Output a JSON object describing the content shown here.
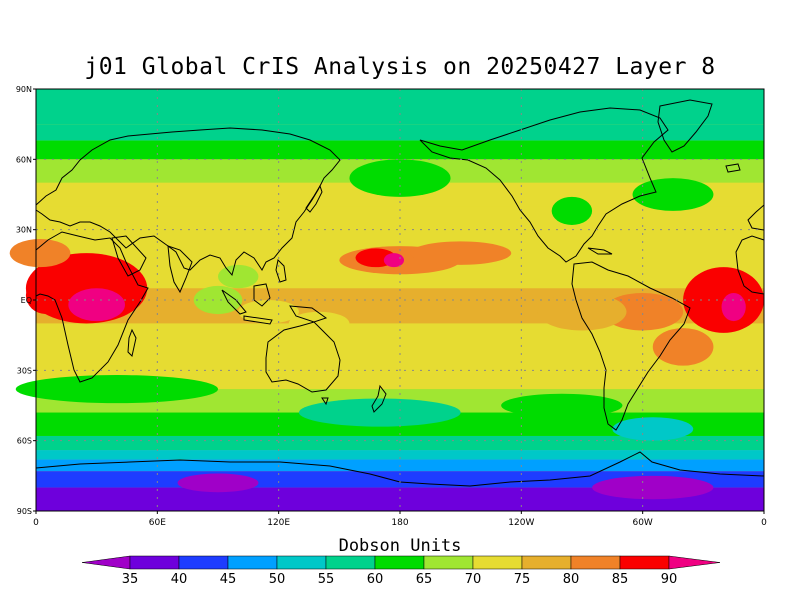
{
  "title": "j01 Global CrIS Analysis on 20250427 Layer 8",
  "colorbar": {
    "label": "Dobson Units",
    "tick_labels": [
      "35",
      "40",
      "45",
      "50",
      "55",
      "60",
      "65",
      "70",
      "75",
      "80",
      "85",
      "90"
    ],
    "bins": [
      {
        "upper": 35,
        "color": "#a000c8"
      },
      {
        "upper": 40,
        "color": "#6e00dc"
      },
      {
        "upper": 45,
        "color": "#1e3cff"
      },
      {
        "upper": 50,
        "color": "#00a0ff"
      },
      {
        "upper": 55,
        "color": "#00c8c8"
      },
      {
        "upper": 60,
        "color": "#00d28c"
      },
      {
        "upper": 65,
        "color": "#00dc00"
      },
      {
        "upper": 70,
        "color": "#a0e632"
      },
      {
        "upper": 75,
        "color": "#e6dc32"
      },
      {
        "upper": 80,
        "color": "#e6af2d"
      },
      {
        "upper": 85,
        "color": "#f08228"
      },
      {
        "upper": 90,
        "color": "#fa0000"
      },
      {
        "upper": 95,
        "color": "#f00082"
      }
    ]
  },
  "map": {
    "lon_labels": [
      "0",
      "60E",
      "120E",
      "180",
      "120W",
      "60W",
      "0"
    ],
    "lat_labels": [
      "90N",
      "60N",
      "30N",
      "EQ",
      "30S",
      "60S",
      "90S"
    ],
    "grid": true,
    "bands": [
      {
        "lat": 90,
        "du": 57
      },
      {
        "lat": 75,
        "du": 56
      },
      {
        "lat": 68,
        "du": 61
      },
      {
        "lat": 60,
        "du": 66
      },
      {
        "lat": 50,
        "du": 68
      },
      {
        "lat": 40,
        "du": 72
      },
      {
        "lat": 30,
        "du": 73
      },
      {
        "lat": 20,
        "du": 74
      },
      {
        "lat": 5,
        "du": 75
      },
      {
        "lat": -10,
        "du": 75
      },
      {
        "lat": -25,
        "du": 72
      },
      {
        "lat": -38,
        "du": 68
      },
      {
        "lat": -48,
        "du": 63
      },
      {
        "lat": -58,
        "du": 60
      },
      {
        "lat": -64,
        "du": 55
      },
      {
        "lat": -68,
        "du": 50
      },
      {
        "lat": -73,
        "du": 44
      },
      {
        "lat": -80,
        "du": 39
      },
      {
        "lat": -90,
        "du": 38
      }
    ],
    "features": [
      {
        "lon": 25,
        "lat": 5,
        "rlon": 30,
        "rlat": 15,
        "du": 88
      },
      {
        "lon": 30,
        "lat": -2,
        "rlon": 14,
        "rlat": 7,
        "du": 91
      },
      {
        "lon": 5,
        "lat": 2,
        "rlon": 10,
        "rlat": 8,
        "du": 89
      },
      {
        "lon": 340,
        "lat": 0,
        "rlon": 20,
        "rlat": 14,
        "du": 85
      },
      {
        "lon": 345,
        "lat": -3,
        "rlon": 6,
        "rlat": 6,
        "du": 90
      },
      {
        "lon": 2,
        "lat": 20,
        "rlon": 15,
        "rlat": 6,
        "du": 84
      },
      {
        "lon": 180,
        "lat": 17,
        "rlon": 30,
        "rlat": 6,
        "du": 82
      },
      {
        "lon": 168,
        "lat": 18,
        "rlon": 10,
        "rlat": 4,
        "du": 88
      },
      {
        "lon": 177,
        "lat": 17,
        "rlon": 5,
        "rlat": 3,
        "du": 90
      },
      {
        "lon": 210,
        "lat": 20,
        "rlon": 25,
        "rlat": 5,
        "du": 80
      },
      {
        "lon": 300,
        "lat": -5,
        "rlon": 20,
        "rlat": 8,
        "du": 82
      },
      {
        "lon": 270,
        "lat": -5,
        "rlon": 22,
        "rlat": 8,
        "du": 77
      },
      {
        "lon": 320,
        "lat": -20,
        "rlon": 15,
        "rlat": 8,
        "du": 82
      },
      {
        "lon": 90,
        "lat": 0,
        "rlon": 12,
        "rlat": 6,
        "du": 68
      },
      {
        "lon": 100,
        "lat": 10,
        "rlon": 10,
        "rlat": 5,
        "du": 66
      },
      {
        "lon": 115,
        "lat": -5,
        "rlon": 15,
        "rlat": 5,
        "du": 70
      },
      {
        "lon": 140,
        "lat": -10,
        "rlon": 15,
        "rlat": 5,
        "du": 70
      },
      {
        "lon": 40,
        "lat": -38,
        "rlon": 50,
        "rlat": 6,
        "du": 64
      },
      {
        "lon": 170,
        "lat": -48,
        "rlon": 40,
        "rlat": 6,
        "du": 56
      },
      {
        "lon": 260,
        "lat": -45,
        "rlon": 30,
        "rlat": 5,
        "du": 60
      },
      {
        "lon": 305,
        "lat": -55,
        "rlon": 20,
        "rlat": 5,
        "du": 52
      },
      {
        "lon": 180,
        "lat": 52,
        "rlon": 25,
        "rlat": 8,
        "du": 60
      },
      {
        "lon": 265,
        "lat": 38,
        "rlon": 10,
        "rlat": 6,
        "du": 62
      },
      {
        "lon": 315,
        "lat": 45,
        "rlon": 20,
        "rlat": 7,
        "du": 64
      },
      {
        "lon": 90,
        "lat": -78,
        "rlon": 20,
        "rlat": 4,
        "du": 34
      },
      {
        "lon": 305,
        "lat": -80,
        "rlon": 30,
        "rlat": 5,
        "du": 34
      }
    ]
  }
}
